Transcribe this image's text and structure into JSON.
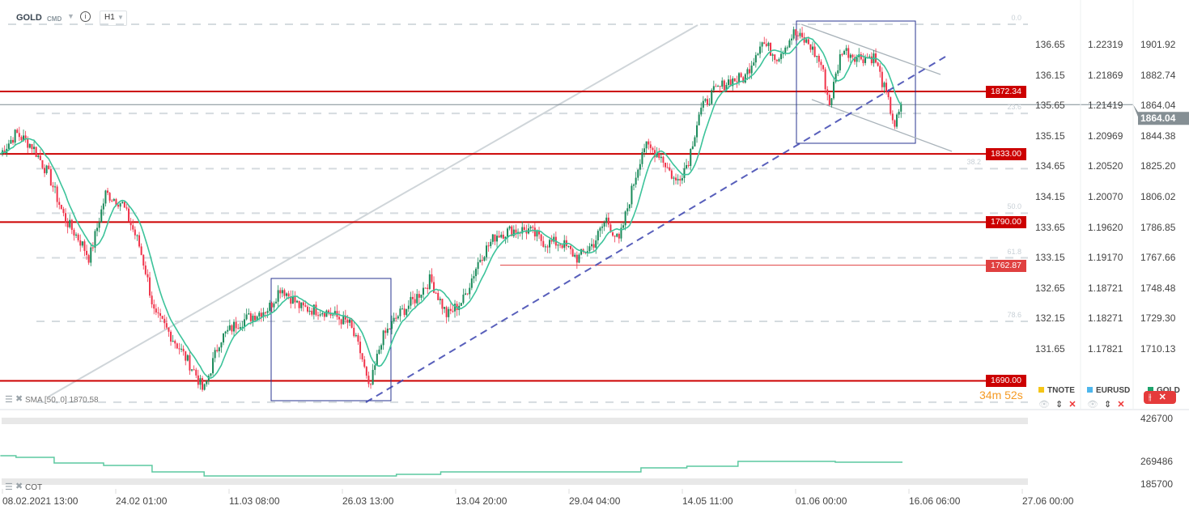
{
  "header": {
    "symbol": "GOLD",
    "type": "CMD",
    "timeframe": "H1"
  },
  "indicators": {
    "sma_label": "SMA [50, 0] 1870.58",
    "cot_label": "COT"
  },
  "countdown": {
    "minutes": "34m",
    "seconds": "52s"
  },
  "legend": [
    {
      "name": "TNOTE",
      "color": "#f5c518"
    },
    {
      "name": "EURUSD",
      "color": "#4db6ec"
    },
    {
      "name": "GOLD",
      "color": "#1ea36c"
    }
  ],
  "colors": {
    "up": "#1a8a5a",
    "down": "#f0334a",
    "sma": "#3cc39a",
    "level": "#cc0000",
    "trend": "#3b44b0",
    "box": "#2a3690"
  },
  "current_price": "1864.04",
  "chart_data": {
    "type": "candlestick",
    "symbol": "GOLD",
    "timeframe": "H1",
    "ylim": [
      1676.5,
      1914.7
    ],
    "x_tick_labels": [
      "08.02.2021  13:00",
      "24.02  01:00",
      "11.03  08:00",
      "26.03  13:00",
      "13.04  20:00",
      "29.04  04:00",
      "14.05  11:00",
      "01.06  00:00",
      "16.06  06:00",
      "27.06  00:00"
    ],
    "axis_gold": [
      "1901.92",
      "1882.74",
      "1864.04",
      "1844.38",
      "1825.20",
      "1806.02",
      "1786.85",
      "1767.66",
      "1748.48",
      "1729.30",
      "1710.13"
    ],
    "axis_tnote": [
      "136.65",
      "136.15",
      "135.65",
      "135.15",
      "134.65",
      "134.15",
      "133.65",
      "133.15",
      "132.65",
      "132.15",
      "131.65"
    ],
    "axis_eurusd": [
      "1.22319",
      "1.21869",
      "1.21419",
      "1.20969",
      "1.20520",
      "1.20070",
      "1.19620",
      "1.19170",
      "1.18721",
      "1.18271",
      "1.17821"
    ],
    "levels": [
      {
        "price": 1872.34,
        "label": "1872.34"
      },
      {
        "price": 1833.0,
        "label": "1833.00"
      },
      {
        "price": 1790.0,
        "label": "1790.00"
      },
      {
        "price": 1762.87,
        "label": "1762.87"
      },
      {
        "price": 1690.0,
        "label": "1690.00"
      }
    ],
    "fibonacci": {
      "high": 1914.7,
      "low": 1676.5,
      "levels": [
        "0.0",
        "23.6",
        "38.2",
        "50.0",
        "61.8",
        "78.6",
        "100"
      ]
    },
    "close_path": [
      [
        "2021-02-08T06:00",
        1833
      ],
      [
        "2021-02-10T11:00",
        1846
      ],
      [
        "2021-02-12T18:00",
        1838
      ],
      [
        "2021-02-15T01:00",
        1820
      ],
      [
        "2021-02-17T08:00",
        1792
      ],
      [
        "2021-02-19T16:00",
        1777
      ],
      [
        "2021-02-20T19:00",
        1767
      ],
      [
        "2021-02-23T02:00",
        1808
      ],
      [
        "2021-02-25T09:00",
        1802
      ],
      [
        "2021-02-27T17:00",
        1777
      ],
      [
        "2021-02-28T20:00",
        1757
      ],
      [
        "2021-03-02T00:00",
        1731
      ],
      [
        "2021-03-03T03:00",
        1726
      ],
      [
        "2021-03-05T10:00",
        1711
      ],
      [
        "2021-03-07T17:00",
        1695
      ],
      [
        "2021-03-08T21:00",
        1683
      ],
      [
        "2021-03-11T04:00",
        1716
      ],
      [
        "2021-03-13T12:00",
        1726
      ],
      [
        "2021-03-15T19:00",
        1731
      ],
      [
        "2021-03-18T02:00",
        1736
      ],
      [
        "2021-03-19T18:00",
        1749
      ],
      [
        "2021-03-22T14:00",
        1736
      ],
      [
        "2021-03-26T00:00",
        1734
      ],
      [
        "2021-03-29T10:00",
        1726
      ],
      [
        "2021-03-31T03:00",
        1706
      ],
      [
        "2021-04-01T05:00",
        1683
      ],
      [
        "2021-04-02T22:00",
        1716
      ],
      [
        "2021-04-05T06:00",
        1731
      ],
      [
        "2021-04-07T13:00",
        1741
      ],
      [
        "2021-04-09T20:00",
        1754
      ],
      [
        "2021-04-12T04:00",
        1731
      ],
      [
        "2021-04-14T11:00",
        1741
      ],
      [
        "2021-04-16T18:00",
        1767
      ],
      [
        "2021-04-19T02:00",
        1782
      ],
      [
        "2021-04-21T09:00",
        1785
      ],
      [
        "2021-04-23T16:00",
        1785
      ],
      [
        "2021-04-25T23:00",
        1777
      ],
      [
        "2021-04-28T07:00",
        1777
      ],
      [
        "2021-04-30T14:00",
        1767
      ],
      [
        "2021-05-02T21:00",
        1777
      ],
      [
        "2021-05-04T15:00",
        1792
      ],
      [
        "2021-05-06T09:00",
        1777
      ],
      [
        "2021-05-08T02:00",
        1808
      ],
      [
        "2021-05-09T20:00",
        1838
      ],
      [
        "2021-05-12T03:00",
        1833
      ],
      [
        "2021-05-14T10:00",
        1815
      ],
      [
        "2021-05-16T03:00",
        1828
      ],
      [
        "2021-05-17T17:00",
        1859
      ],
      [
        "2021-05-19T13:00",
        1871
      ],
      [
        "2021-05-21T20:00",
        1879
      ],
      [
        "2021-05-24T03:00",
        1881
      ],
      [
        "2021-05-26T10:00",
        1904
      ],
      [
        "2021-05-28T17:00",
        1894
      ],
      [
        "2021-05-31T00:00",
        1909
      ],
      [
        "2021-06-02T05:00",
        1902
      ],
      [
        "2021-06-03T22:00",
        1889
      ],
      [
        "2021-06-05T01:00",
        1864
      ],
      [
        "2021-06-06T19:00",
        1899
      ],
      [
        "2021-06-09T02:00",
        1894
      ],
      [
        "2021-06-11T09:00",
        1894
      ],
      [
        "2021-06-13T03:00",
        1869
      ],
      [
        "2021-06-14T06:00",
        1851
      ],
      [
        "2021-06-15T08:00",
        1864
      ]
    ],
    "cot": {
      "axis": [
        "426700",
        "269486",
        "185700"
      ],
      "ylim": [
        185700,
        426700
      ],
      "steps": [
        [
          "2021-02-08T06:00",
          289850
        ],
        [
          "2021-02-10T11:00",
          283900
        ],
        [
          "2021-02-15T20:00",
          263075
        ],
        [
          "2021-02-22T19:00",
          254150
        ],
        [
          "2021-03-01T15:00",
          230350
        ],
        [
          "2021-03-08T23:00",
          215475
        ],
        [
          "2021-04-05T01:00",
          221425
        ],
        [
          "2021-04-11T07:00",
          230350
        ],
        [
          "2021-05-09T12:00",
          245225
        ],
        [
          "2021-05-15T23:00",
          251175
        ],
        [
          "2021-05-23T04:00",
          269025
        ],
        [
          "2021-06-05T21:00",
          266050
        ],
        [
          "2021-06-15T08:00",
          266050
        ]
      ]
    }
  }
}
